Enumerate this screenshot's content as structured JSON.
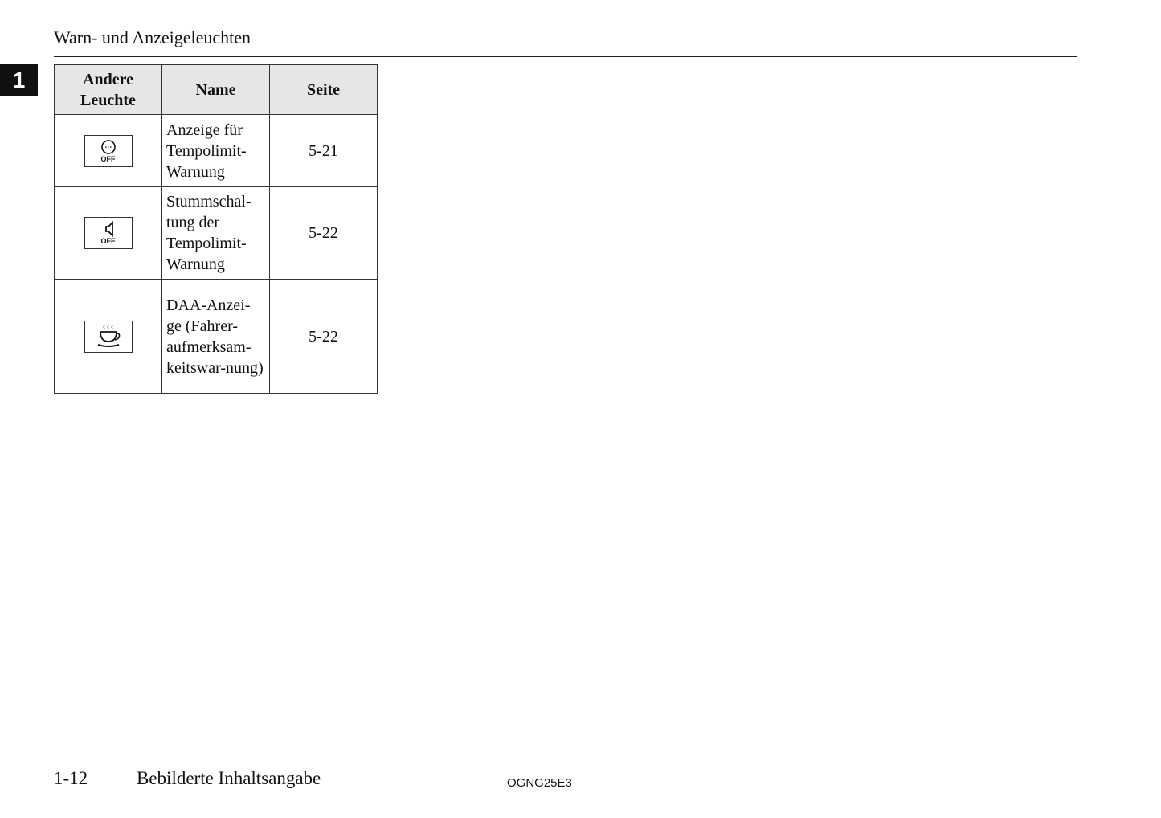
{
  "header": {
    "title": "Warn- und Anzeigeleuchten",
    "chapter_tab": "1"
  },
  "table": {
    "columns": [
      "Andere Leuchte",
      "Name",
      "Seite"
    ],
    "rows": [
      {
        "icon": "speed-limit-warning-off-icon",
        "icon_label": "OFF",
        "name": "Anzeige für Tempolimit-Warnung",
        "page": "5-21"
      },
      {
        "icon": "speed-limit-warning-mute-off-icon",
        "icon_label": "OFF",
        "name": "Stummschal-tung der Tempolimit-Warnung",
        "page": "5-22"
      },
      {
        "icon": "coffee-cup-driver-attention-icon",
        "name": "DAA-Anzei-ge (Fahrer-aufmerksam-keitswar-nung)",
        "page": "5-22"
      }
    ]
  },
  "footer": {
    "page_number": "1-12",
    "section": "Bebilderte Inhaltsangabe",
    "code": "OGNG25E3"
  }
}
